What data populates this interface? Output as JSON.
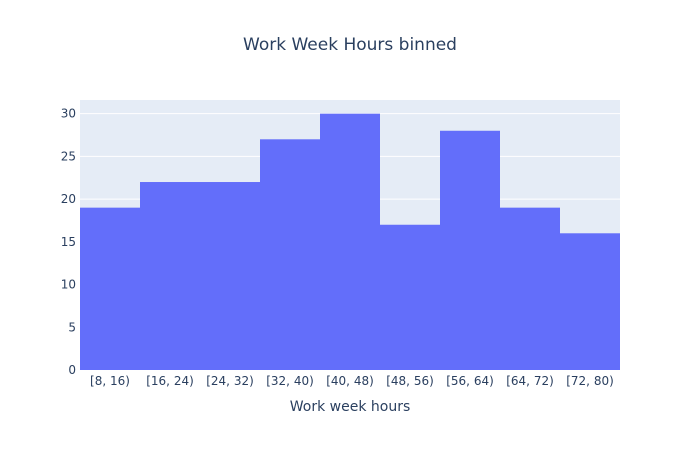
{
  "chart_data": {
    "type": "bar",
    "title": "Work Week Hours binned",
    "xlabel": "Work week hours",
    "ylabel": "",
    "categories": [
      "[8, 16)",
      "[16, 24)",
      "[24, 32)",
      "[32, 40)",
      "[40, 48)",
      "[48, 56)",
      "[56, 64)",
      "[64, 72)",
      "[72, 80)"
    ],
    "values": [
      19,
      22,
      22,
      27,
      30,
      17,
      28,
      19,
      16
    ],
    "ylim": [
      0,
      31.6
    ],
    "yticks": [
      0,
      5,
      10,
      15,
      20,
      25,
      30
    ],
    "grid": true,
    "legend": "none",
    "colors": {
      "bar": "#636efa",
      "plot_background": "#e5ecf6",
      "grid": "#ffffff",
      "text": "#2a3f5f"
    }
  }
}
